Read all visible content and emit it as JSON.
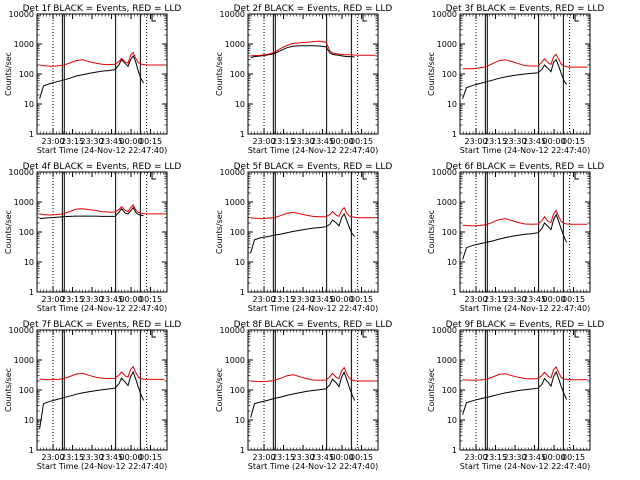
{
  "figure": {
    "panel_titles": [
      "Det 1f BLACK = Events, RED = LLD",
      "Det 2f BLACK = Events, RED = LLD",
      "Det 3f BLACK = Events, RED = LLD",
      "Det 4f BLACK = Events, RED = LLD",
      "Det 5f BLACK = Events, RED = LLD",
      "Det 6f BLACK = Events, RED = LLD",
      "Det 7f BLACK = Events, RED = LLD",
      "Det 8f BLACK = Events, RED = LLD",
      "Det 9f BLACK = Events, RED = LLD"
    ],
    "xlabel": "Start Time (24-Nov-12 22:47:40)",
    "ylabel": "Counts/sec",
    "x_tick_labels": [
      "23:00",
      "23:15",
      "23:30",
      "23:45",
      "00:00",
      "00:15"
    ],
    "y_tick_labels": [
      "1",
      "10",
      "100",
      "1000",
      "10000"
    ]
  },
  "chart_data": {
    "type": "line",
    "subplots": 9,
    "layout": "3x3",
    "xlabel": "Start Time (24-Nov-12 22:47:40)",
    "ylabel": "Counts/sec",
    "xlim_minutes_after_start": [
      0,
      100
    ],
    "x_ticks": [
      "23:00",
      "23:15",
      "23:30",
      "23:45",
      "00:00",
      "00:15"
    ],
    "x_tick_minutes": [
      12.33,
      27.33,
      42.33,
      57.33,
      72.33,
      87.33
    ],
    "ylim": [
      1,
      10000
    ],
    "yscale": "log",
    "vertical_lines": {
      "dotted_minutes": [
        12.33,
        84.33
      ],
      "solid_minutes": [
        19.5,
        21.0,
        60.5,
        79.5
      ],
      "corner_mark_minutes": [
        88.5,
        91.5
      ]
    },
    "series_names": [
      "Events",
      "LLD"
    ],
    "series_colors": {
      "Events": "#000000",
      "LLD": "#e00000"
    },
    "x_minutes": [
      0,
      2,
      5,
      10,
      15,
      20,
      25,
      30,
      35,
      40,
      45,
      50,
      55,
      60,
      63,
      65,
      68,
      70,
      72,
      74,
      76,
      78,
      80,
      82,
      85,
      88,
      90,
      93,
      95,
      98,
      100
    ],
    "panels": [
      {
        "title": "Det 1f BLACK = Events, RED = LLD",
        "series": [
          {
            "name": "Events",
            "values": [
              null,
              15,
              40,
              48,
              55,
              62,
              72,
              85,
              95,
              105,
              115,
              125,
              130,
              140,
              200,
              300,
              220,
              180,
              300,
              400,
              250,
              120,
              70,
              50,
              null,
              null,
              null,
              null,
              null,
              null,
              null
            ]
          },
          {
            "name": "LLD",
            "values": [
              null,
              200,
              190,
              180,
              185,
              195,
              230,
              280,
              300,
              260,
              230,
              210,
              205,
              210,
              260,
              330,
              250,
              230,
              420,
              520,
              330,
              240,
              215,
              205,
              200,
              200,
              200,
              200,
              200,
              200,
              null
            ]
          }
        ]
      },
      {
        "title": "Det 2f BLACK = Events, RED = LLD",
        "series": [
          {
            "name": "Events",
            "values": [
              null,
              350,
              380,
              400,
              430,
              480,
              600,
              750,
              850,
              880,
              880,
              870,
              860,
              800,
              500,
              450,
              430,
              420,
              400,
              390,
              380,
              380,
              380,
              370,
              null,
              null,
              null,
              null,
              null,
              null,
              null
            ]
          },
          {
            "name": "LLD",
            "values": [
              null,
              400,
              410,
              420,
              450,
              520,
              700,
              900,
              1050,
              1100,
              1150,
              1200,
              1250,
              1150,
              600,
              500,
              470,
              460,
              450,
              440,
              440,
              440,
              440,
              430,
              420,
              420,
              420,
              420,
              420,
              420,
              null
            ]
          }
        ]
      },
      {
        "title": "Det 3f BLACK = Events, RED = LLD",
        "series": [
          {
            "name": "Events",
            "values": [
              null,
              15,
              35,
              42,
              48,
              55,
              62,
              72,
              80,
              88,
              95,
              100,
              105,
              110,
              140,
              200,
              150,
              120,
              250,
              300,
              180,
              100,
              60,
              45,
              null,
              null,
              null,
              null,
              null,
              null,
              null
            ]
          },
          {
            "name": "LLD",
            "values": [
              null,
              150,
              150,
              150,
              160,
              175,
              220,
              280,
              300,
              260,
              220,
              190,
              185,
              185,
              250,
              320,
              230,
              210,
              380,
              450,
              300,
              210,
              185,
              175,
              170,
              170,
              170,
              170,
              170,
              170,
              null
            ]
          }
        ]
      },
      {
        "title": "Det 4f BLACK = Events, RED = LLD",
        "series": [
          {
            "name": "Events",
            "values": [
              null,
              280,
              290,
              300,
              310,
              320,
              330,
              340,
              340,
              340,
              340,
              330,
              330,
              330,
              450,
              600,
              420,
              400,
              500,
              650,
              450,
              380,
              360,
              350,
              null,
              null,
              null,
              null,
              null,
              null,
              null
            ]
          },
          {
            "name": "LLD",
            "values": [
              null,
              400,
              380,
              370,
              380,
              400,
              480,
              580,
              600,
              560,
              520,
              480,
              460,
              460,
              560,
              700,
              520,
              480,
              650,
              800,
              540,
              450,
              420,
              410,
              400,
              400,
              400,
              400,
              400,
              400,
              null
            ]
          }
        ]
      },
      {
        "title": "Det 5f BLACK = Events, RED = LLD",
        "series": [
          {
            "name": "Events",
            "values": [
              null,
              20,
              55,
              65,
              70,
              78,
              85,
              95,
              105,
              115,
              125,
              135,
              140,
              150,
              180,
              250,
              200,
              160,
              300,
              400,
              240,
              140,
              90,
              70,
              null,
              null,
              null,
              null,
              null,
              null,
              null
            ]
          },
          {
            "name": "LLD",
            "values": [
              null,
              300,
              290,
              280,
              290,
              300,
              350,
              420,
              450,
              400,
              360,
              330,
              320,
              320,
              380,
              480,
              360,
              330,
              520,
              650,
              420,
              340,
              320,
              310,
              300,
              300,
              300,
              300,
              300,
              300,
              null
            ]
          }
        ]
      },
      {
        "title": "Det 6f BLACK = Events, RED = LLD",
        "series": [
          {
            "name": "Events",
            "values": [
              null,
              12,
              30,
              36,
              40,
              45,
              50,
              58,
              65,
              72,
              78,
              84,
              88,
              95,
              130,
              200,
              150,
              120,
              260,
              380,
              220,
              120,
              70,
              45,
              null,
              null,
              null,
              null,
              null,
              null,
              null
            ]
          },
          {
            "name": "LLD",
            "values": [
              null,
              170,
              165,
              160,
              165,
              175,
              210,
              260,
              280,
              240,
              205,
              185,
              180,
              185,
              240,
              320,
              220,
              210,
              400,
              520,
              320,
              220,
              195,
              185,
              180,
              180,
              180,
              180,
              180,
              180,
              null
            ]
          }
        ]
      },
      {
        "title": "Det 7f BLACK = Events, RED = LLD",
        "series": [
          {
            "name": "Events",
            "values": [
              null,
              5,
              35,
              42,
              48,
              55,
              62,
              72,
              80,
              88,
              95,
              102,
              108,
              115,
              160,
              250,
              180,
              140,
              280,
              400,
              230,
              120,
              70,
              45,
              null,
              null,
              null,
              null,
              null,
              null,
              null
            ]
          },
          {
            "name": "LLD",
            "values": [
              null,
              230,
              225,
              220,
              225,
              235,
              280,
              340,
              360,
              310,
              270,
              245,
              240,
              245,
              310,
              400,
              290,
              270,
              480,
              600,
              380,
              270,
              240,
              230,
              225,
              225,
              225,
              225,
              225,
              225,
              null
            ]
          }
        ]
      },
      {
        "title": "Det 8f BLACK = Events, RED = LLD",
        "series": [
          {
            "name": "Events",
            "values": [
              null,
              12,
              35,
              40,
              45,
              52,
              58,
              66,
              74,
              82,
              90,
              96,
              102,
              110,
              150,
              230,
              170,
              130,
              270,
              390,
              220,
              120,
              70,
              45,
              null,
              null,
              null,
              null,
              null,
              null,
              null
            ]
          },
          {
            "name": "LLD",
            "values": [
              null,
              200,
              195,
              190,
              195,
              205,
              245,
              300,
              320,
              275,
              240,
              215,
              210,
              215,
              275,
              360,
              260,
              240,
              440,
              560,
              350,
              245,
              215,
              205,
              200,
              200,
              200,
              200,
              200,
              200,
              null
            ]
          }
        ]
      },
      {
        "title": "Det 9f BLACK = Events, RED = LLD",
        "series": [
          {
            "name": "Events",
            "values": [
              null,
              15,
              38,
              44,
              50,
              56,
              63,
              72,
              80,
              88,
              96,
              102,
              108,
              115,
              155,
              240,
              175,
              135,
              280,
              400,
              230,
              125,
              75,
              48,
              null,
              null,
              null,
              null,
              null,
              null,
              null
            ]
          },
          {
            "name": "LLD",
            "values": [
              null,
              220,
              215,
              210,
              215,
              225,
              270,
              330,
              350,
              300,
              265,
              240,
              235,
              240,
              305,
              390,
              280,
              260,
              470,
              590,
              370,
              260,
              235,
              225,
              220,
              220,
              220,
              220,
              220,
              220,
              null
            ]
          }
        ]
      }
    ]
  }
}
